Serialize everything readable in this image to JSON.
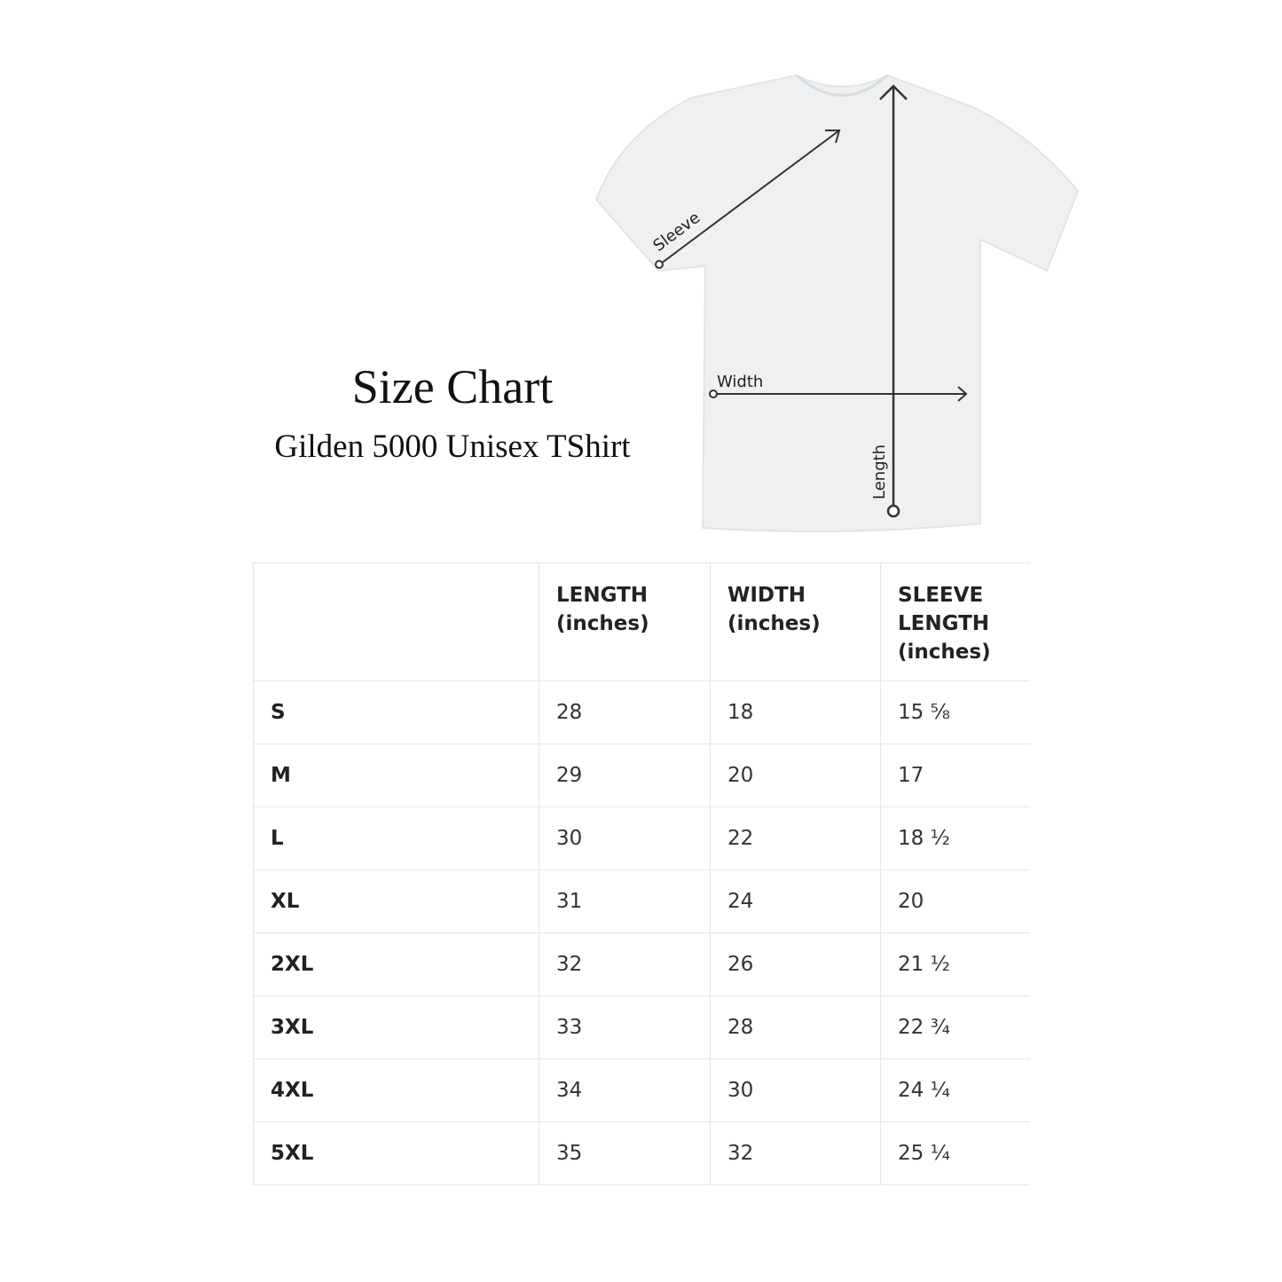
{
  "title": "Size Chart",
  "subtitle": "Gilden 5000 Unisex TShirt",
  "diagram": {
    "labels": {
      "sleeve": "Sleeve",
      "width": "Width",
      "length": "Length"
    },
    "shirt_color": "#eef0f1"
  },
  "table": {
    "headers": [
      "",
      "LENGTH\n(inches)",
      "WIDTH\n(inches)",
      "SLEEVE\nLENGTH\n(inches)"
    ],
    "rows": [
      [
        "S",
        "28",
        "18",
        "15 ⅝"
      ],
      [
        "M",
        "29",
        "20",
        "17"
      ],
      [
        "L",
        "30",
        "22",
        "18 ½"
      ],
      [
        "XL",
        "31",
        "24",
        "20"
      ],
      [
        "2XL",
        "32",
        "26",
        "21 ½"
      ],
      [
        "3XL",
        "33",
        "28",
        "22 ¾"
      ],
      [
        "4XL",
        "34",
        "30",
        "24 ¼"
      ],
      [
        "5XL",
        "35",
        "32",
        "25 ¼"
      ]
    ]
  }
}
